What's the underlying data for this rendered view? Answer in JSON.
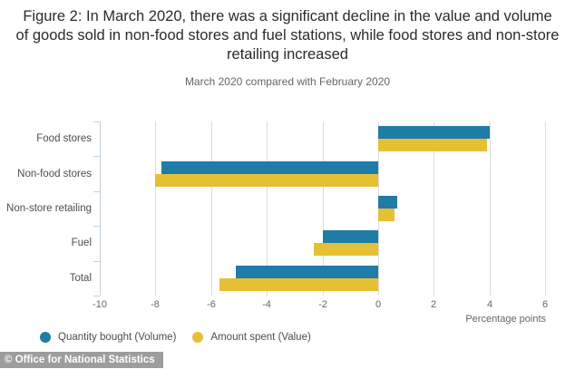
{
  "title": "Figure 2: In March 2020, there was a significant decline in the value and volume of goods sold in non-food stores and fuel stations, while food stores and non-store retailing increased",
  "subtitle": "March 2020 compared with February 2020",
  "chart_data": {
    "type": "bar",
    "orientation": "horizontal",
    "title": "Figure 2: In March 2020, there was a significant decline in the value and volume of goods sold in non-food stores and fuel stations, while food stores and non-store retailing increased",
    "subtitle": "March 2020 compared with February 2020",
    "categories": [
      "Food stores",
      "Non-food stores",
      "Non-store retailing",
      "Fuel",
      "Total"
    ],
    "series": [
      {
        "name": "Quantity bought (Volume)",
        "color": "#1f7ca6",
        "values": [
          4.0,
          -7.8,
          0.7,
          -2.0,
          -5.1
        ]
      },
      {
        "name": "Amount spent (Value)",
        "color": "#e5c035",
        "values": [
          3.9,
          -8.0,
          0.6,
          -2.3,
          -5.7
        ]
      }
    ],
    "xlim": [
      -10,
      6
    ],
    "x_ticks": [
      -10,
      -8,
      -6,
      -4,
      -2,
      0,
      2,
      4,
      6
    ],
    "xlabel": "Percentage points",
    "grid": true,
    "legend_position": "bottom-left"
  },
  "footer": {
    "copyright": "© Office for National Statistics",
    "bar_color": "#9d9d9d"
  }
}
